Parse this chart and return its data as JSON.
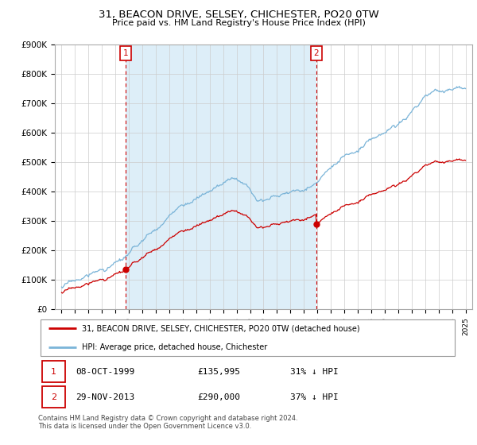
{
  "title": "31, BEACON DRIVE, SELSEY, CHICHESTER, PO20 0TW",
  "subtitle": "Price paid vs. HM Land Registry's House Price Index (HPI)",
  "hpi_color": "#7ab4d8",
  "price_color": "#cc0000",
  "shade_color": "#ddeef8",
  "transaction1_date": 1999.78,
  "transaction1_price": 135995,
  "transaction2_date": 2013.91,
  "transaction2_price": 290000,
  "legend_entry1": "31, BEACON DRIVE, SELSEY, CHICHESTER, PO20 0TW (detached house)",
  "legend_entry2": "HPI: Average price, detached house, Chichester",
  "table_date1": "08-OCT-1999",
  "table_price1": "£135,995",
  "table_pct1": "31% ↓ HPI",
  "table_date2": "29-NOV-2013",
  "table_price2": "£290,000",
  "table_pct2": "37% ↓ HPI",
  "footnote": "Contains HM Land Registry data © Crown copyright and database right 2024.\nThis data is licensed under the Open Government Licence v3.0.",
  "background_color": "#ffffff",
  "grid_color": "#cccccc",
  "ylim": [
    0,
    900000
  ],
  "yticks": [
    0,
    100000,
    200000,
    300000,
    400000,
    500000,
    600000,
    700000,
    800000,
    900000
  ],
  "ytick_labels": [
    "£0",
    "£100K",
    "£200K",
    "£300K",
    "£400K",
    "£500K",
    "£600K",
    "£700K",
    "£800K",
    "£900K"
  ],
  "xstart": 1995,
  "xend": 2025
}
